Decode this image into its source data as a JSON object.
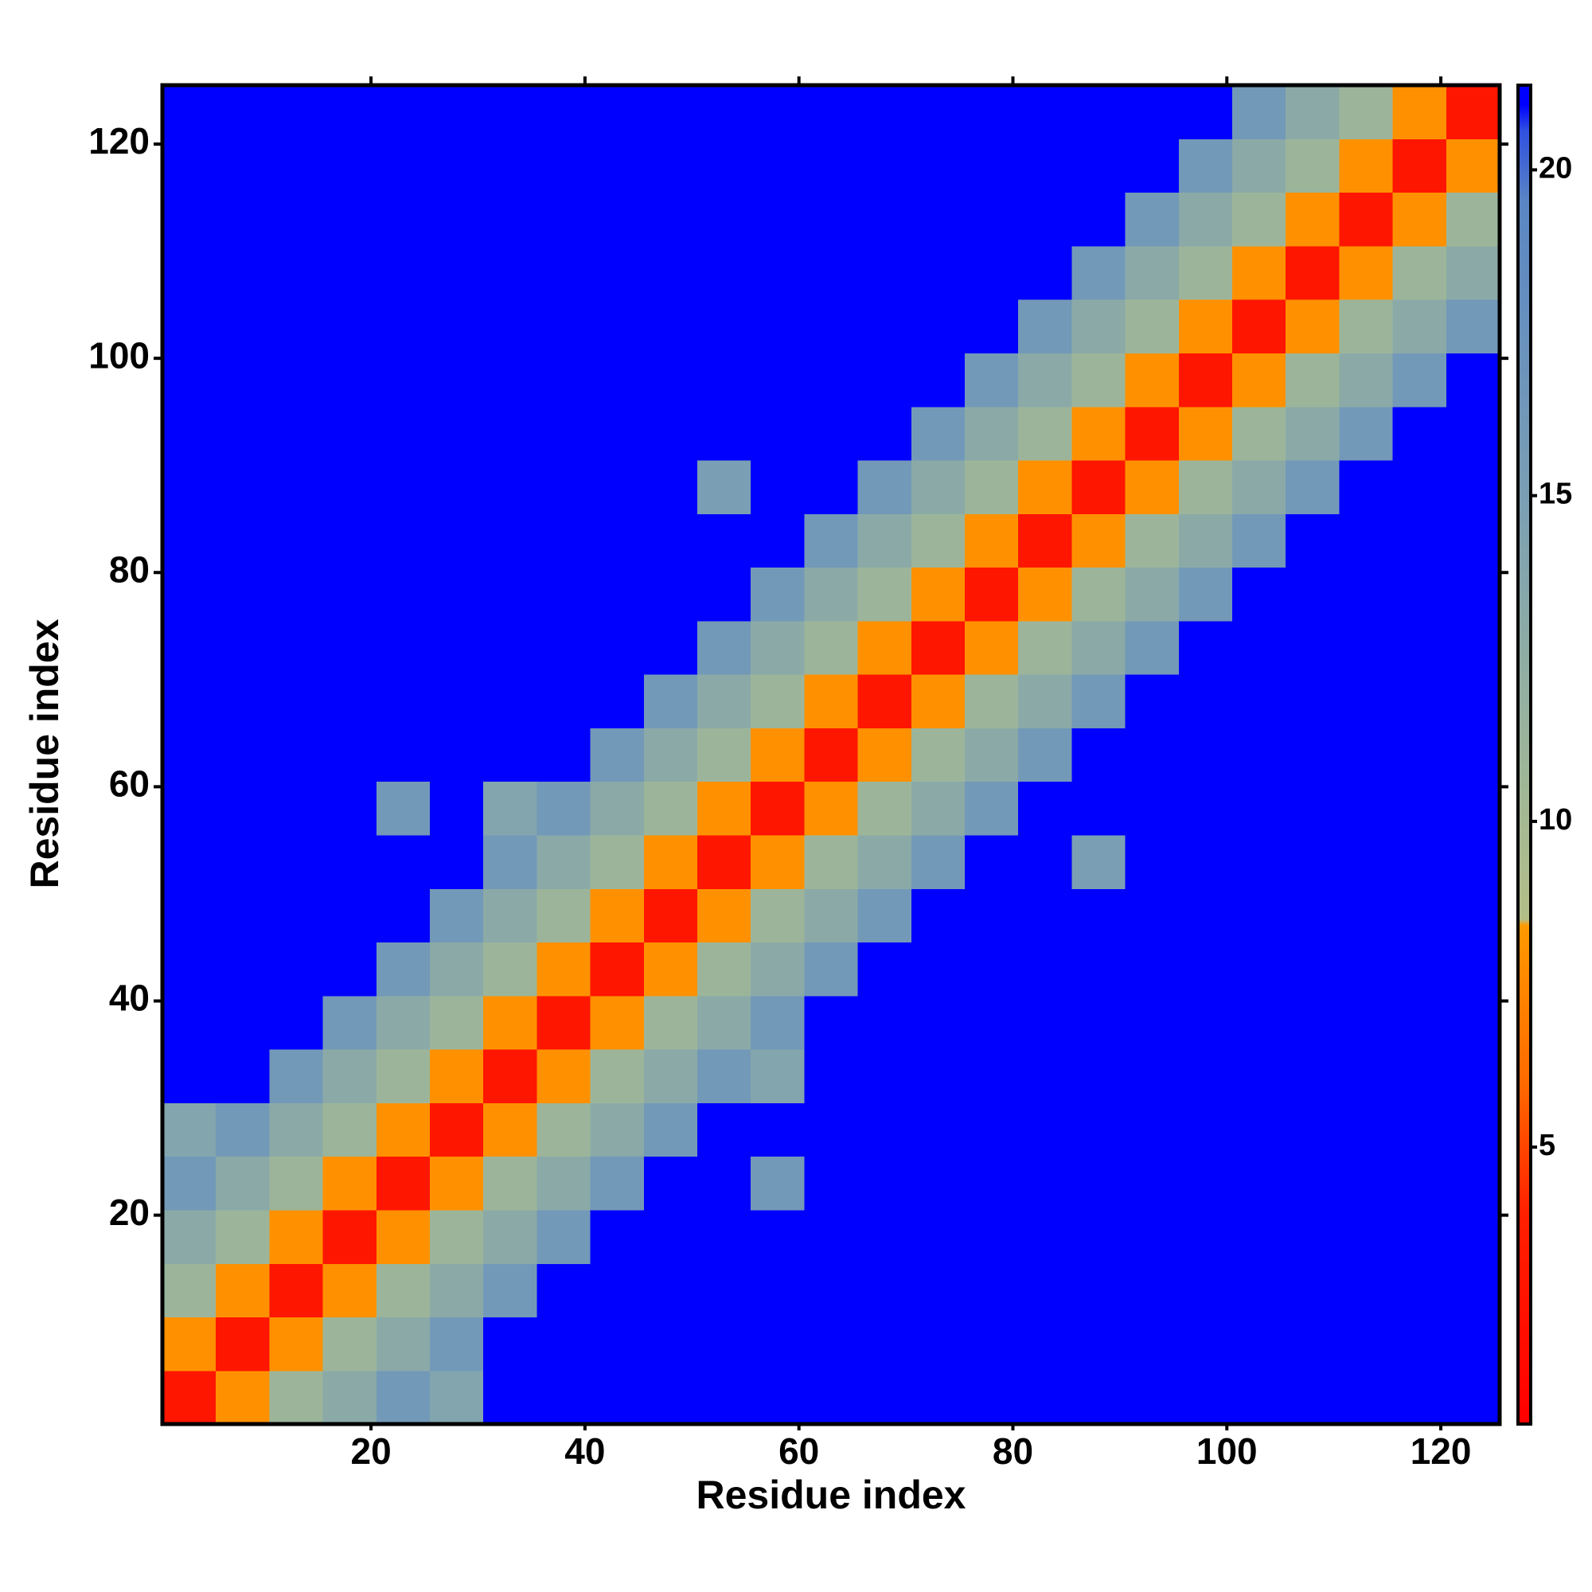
{
  "chart_data": {
    "type": "heatmap",
    "xlabel": "Residue index",
    "ylabel": "Residue index",
    "xbins": [
      0.5,
      5.5,
      10.5,
      15.5,
      20.5,
      25.5,
      30.5,
      35.5,
      40.5,
      45.5,
      50.5,
      55.5,
      60.5,
      65.5,
      70.5,
      75.5,
      80.5,
      85.5,
      90.5,
      95.5,
      100.5,
      105.5,
      110.5,
      115.5,
      120.5,
      125.5
    ],
    "ybins": [
      0.5,
      5.5,
      10.5,
      15.5,
      20.5,
      25.5,
      30.5,
      35.5,
      40.5,
      45.5,
      50.5,
      55.5,
      60.5,
      65.5,
      70.5,
      75.5,
      80.5,
      85.5,
      90.5,
      95.5,
      100.5,
      105.5,
      110.5,
      115.5,
      120.5,
      125.5
    ],
    "xlim": [
      0.5,
      125.5
    ],
    "ylim": [
      0.5,
      125.5
    ],
    "xticks": [
      20,
      40,
      60,
      80,
      100,
      120
    ],
    "yticks": [
      20,
      40,
      60,
      80,
      100,
      120
    ],
    "zlim": [
      0.75,
      21.3
    ],
    "zticks": [
      5,
      10,
      15,
      20
    ],
    "colorscale": [
      {
        "value": 0.75,
        "color": "#ff0000"
      },
      {
        "value": 4,
        "color": "#ff2000"
      },
      {
        "value": 6,
        "color": "#ff6a00"
      },
      {
        "value": 8.4,
        "color": "#ff9900"
      },
      {
        "value": 8.5,
        "color": "#b4bf88"
      },
      {
        "value": 11,
        "color": "#9cb59a"
      },
      {
        "value": 15,
        "color": "#7a9fb4"
      },
      {
        "value": 19.5,
        "color": "#5a86c4"
      },
      {
        "value": 20.6,
        "color": "#3050e0"
      },
      {
        "value": 21,
        "color": "#0000ff"
      }
    ],
    "z": [
      [
        3,
        8,
        11,
        13,
        16,
        14,
        22,
        22,
        22,
        22,
        22,
        22,
        22,
        22,
        22,
        22,
        22,
        22,
        22,
        22,
        22,
        22,
        22,
        22,
        22
      ],
      [
        8,
        3,
        8,
        11,
        13,
        16,
        22,
        22,
        22,
        22,
        22,
        22,
        22,
        22,
        22,
        22,
        22,
        22,
        22,
        22,
        22,
        22,
        22,
        22,
        22
      ],
      [
        11,
        8,
        3,
        8,
        11,
        13,
        16,
        22,
        22,
        22,
        22,
        22,
        22,
        22,
        22,
        22,
        22,
        22,
        22,
        22,
        22,
        22,
        22,
        22,
        22
      ],
      [
        13,
        11,
        8,
        3,
        8,
        11,
        13,
        16,
        22,
        22,
        22,
        22,
        22,
        22,
        22,
        22,
        22,
        22,
        22,
        22,
        22,
        22,
        22,
        22,
        22
      ],
      [
        16,
        13,
        11,
        8,
        3,
        8,
        11,
        13,
        16,
        22,
        22,
        16,
        22,
        22,
        22,
        22,
        22,
        22,
        22,
        22,
        22,
        22,
        22,
        22,
        22
      ],
      [
        14,
        16,
        13,
        11,
        8,
        3,
        8,
        11,
        13,
        16,
        22,
        22,
        22,
        22,
        22,
        22,
        22,
        22,
        22,
        22,
        22,
        22,
        22,
        22,
        22
      ],
      [
        22,
        22,
        16,
        13,
        11,
        8,
        3,
        8,
        11,
        13,
        16,
        14,
        22,
        22,
        22,
        22,
        22,
        22,
        22,
        22,
        22,
        22,
        22,
        22,
        22
      ],
      [
        22,
        22,
        22,
        16,
        13,
        11,
        8,
        3,
        8,
        11,
        13,
        16,
        22,
        22,
        22,
        22,
        22,
        22,
        22,
        22,
        22,
        22,
        22,
        22,
        22
      ],
      [
        22,
        22,
        22,
        22,
        16,
        13,
        11,
        8,
        3,
        8,
        11,
        13,
        16,
        22,
        22,
        22,
        22,
        22,
        22,
        22,
        22,
        22,
        22,
        22,
        22
      ],
      [
        22,
        22,
        22,
        22,
        22,
        16,
        13,
        11,
        8,
        3,
        8,
        11,
        13,
        16,
        22,
        22,
        22,
        22,
        22,
        22,
        22,
        22,
        22,
        22,
        22
      ],
      [
        22,
        22,
        22,
        22,
        22,
        22,
        16,
        13,
        11,
        8,
        3,
        8,
        11,
        13,
        16,
        22,
        22,
        15,
        22,
        22,
        22,
        22,
        22,
        22,
        22
      ],
      [
        22,
        22,
        22,
        22,
        16,
        22,
        14,
        16,
        13,
        11,
        8,
        3,
        8,
        11,
        13,
        16,
        22,
        22,
        22,
        22,
        22,
        22,
        22,
        22,
        22
      ],
      [
        22,
        22,
        22,
        22,
        22,
        22,
        22,
        22,
        16,
        13,
        11,
        8,
        3,
        8,
        11,
        13,
        16,
        22,
        22,
        22,
        22,
        22,
        22,
        22,
        22
      ],
      [
        22,
        22,
        22,
        22,
        22,
        22,
        22,
        22,
        22,
        16,
        13,
        11,
        8,
        3,
        8,
        11,
        13,
        16,
        22,
        22,
        22,
        22,
        22,
        22,
        22
      ],
      [
        22,
        22,
        22,
        22,
        22,
        22,
        22,
        22,
        22,
        22,
        16,
        13,
        11,
        8,
        3,
        8,
        11,
        13,
        16,
        22,
        22,
        22,
        22,
        22,
        22
      ],
      [
        22,
        22,
        22,
        22,
        22,
        22,
        22,
        22,
        22,
        22,
        22,
        16,
        13,
        11,
        8,
        3,
        8,
        11,
        13,
        16,
        22,
        22,
        22,
        22,
        22
      ],
      [
        22,
        22,
        22,
        22,
        22,
        22,
        22,
        22,
        22,
        22,
        22,
        22,
        16,
        13,
        11,
        8,
        3,
        8,
        11,
        13,
        16,
        22,
        22,
        22,
        22
      ],
      [
        22,
        22,
        22,
        22,
        22,
        22,
        22,
        22,
        22,
        22,
        15,
        22,
        22,
        16,
        13,
        11,
        8,
        3,
        8,
        11,
        13,
        16,
        22,
        22,
        22
      ],
      [
        22,
        22,
        22,
        22,
        22,
        22,
        22,
        22,
        22,
        22,
        22,
        22,
        22,
        22,
        16,
        13,
        11,
        8,
        3,
        8,
        11,
        13,
        16,
        22,
        22
      ],
      [
        22,
        22,
        22,
        22,
        22,
        22,
        22,
        22,
        22,
        22,
        22,
        22,
        22,
        22,
        22,
        16,
        13,
        11,
        8,
        3,
        8,
        11,
        13,
        16,
        22
      ],
      [
        22,
        22,
        22,
        22,
        22,
        22,
        22,
        22,
        22,
        22,
        22,
        22,
        22,
        22,
        22,
        22,
        16,
        13,
        11,
        8,
        3,
        8,
        11,
        13,
        16
      ],
      [
        22,
        22,
        22,
        22,
        22,
        22,
        22,
        22,
        22,
        22,
        22,
        22,
        22,
        22,
        22,
        22,
        22,
        16,
        13,
        11,
        8,
        3,
        8,
        11,
        13
      ],
      [
        22,
        22,
        22,
        22,
        22,
        22,
        22,
        22,
        22,
        22,
        22,
        22,
        22,
        22,
        22,
        22,
        22,
        22,
        16,
        13,
        11,
        8,
        3,
        8,
        11
      ],
      [
        22,
        22,
        22,
        22,
        22,
        22,
        22,
        22,
        22,
        22,
        22,
        22,
        22,
        22,
        22,
        22,
        22,
        22,
        22,
        16,
        13,
        11,
        8,
        3,
        8
      ],
      [
        22,
        22,
        22,
        22,
        22,
        22,
        22,
        22,
        22,
        22,
        22,
        22,
        22,
        22,
        22,
        22,
        22,
        22,
        22,
        22,
        16,
        13,
        11,
        8,
        3
      ]
    ]
  }
}
